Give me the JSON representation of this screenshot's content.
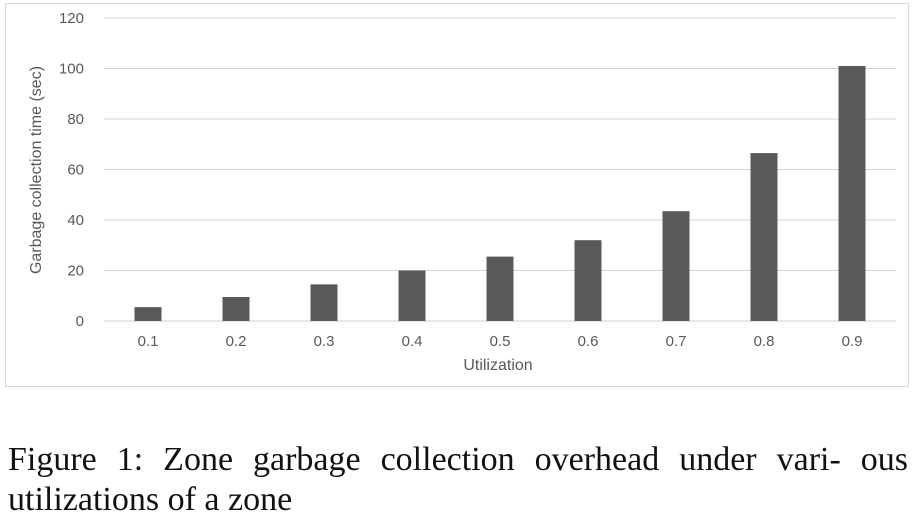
{
  "chart_data": {
    "type": "bar",
    "categories": [
      "0.1",
      "0.2",
      "0.3",
      "0.4",
      "0.5",
      "0.6",
      "0.7",
      "0.8",
      "0.9"
    ],
    "values": [
      5.5,
      9.5,
      14.5,
      20,
      25.5,
      32,
      43.5,
      66.5,
      101
    ],
    "xlabel": "Utilization",
    "ylabel": "Garbage collection time (sec)",
    "ylim": [
      0,
      120
    ],
    "yticks": [
      "0",
      "20",
      "40",
      "60",
      "80",
      "100",
      "120"
    ],
    "grid": true,
    "bar_color": "#595959",
    "grid_color": "#d0d0d0"
  },
  "caption": "Figure 1: Zone garbage collection overhead under vari- ous utilizations of a zone"
}
